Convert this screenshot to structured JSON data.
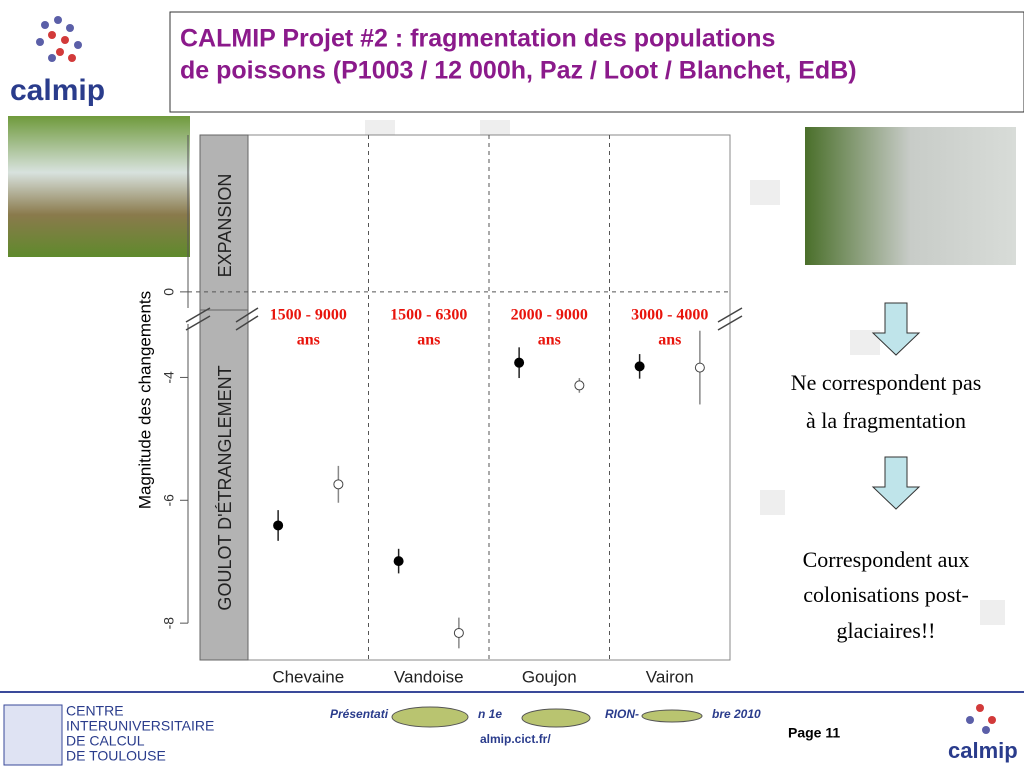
{
  "header": {
    "title_lines": [
      "CALMIP Projet #2 : fragmentation des populations",
      "de poissons (P1003 / 12 000h, Paz / Loot / Blanchet, EdB)"
    ],
    "logo": "calmip"
  },
  "chart_data": {
    "type": "scatter",
    "ylabel": "Magnitude des changements",
    "categories": [
      "Chevaine",
      "Vandoise",
      "Goujon",
      "Vairon"
    ],
    "panel_labels": [
      "EXPANSION",
      "GOULOT D'ÉTRANGLEMENT"
    ],
    "series": [
      {
        "color": "#000000",
        "filled": true,
        "values": [
          -6.41,
          -6.99,
          -3.76,
          -3.82
        ],
        "errors": [
          0.25,
          0.2,
          0.25,
          0.2
        ]
      },
      {
        "color": "#000000",
        "filled": false,
        "values": [
          -5.74,
          -8.16,
          -4.13,
          -3.84
        ],
        "errors": [
          0.3,
          0.25,
          0.12,
          0.6
        ]
      }
    ],
    "ylim": [
      -8.6,
      2.6
    ],
    "ybreak": [
      -3,
      -0.4
    ],
    "yticks": [
      -8,
      -6,
      -4,
      0
    ],
    "reference_line": 0,
    "annotations": [
      [
        "1500 - 9000",
        "ans"
      ],
      [
        "1500 - 6300",
        "ans"
      ],
      [
        "2000 - 9000",
        "ans"
      ],
      [
        "3000 - 4000",
        "ans"
      ]
    ],
    "annotation_color": "#e8140c"
  },
  "side_notes": [
    "Ne correspondent pas",
    "à la fragmentation",
    "Correspondent aux",
    "colonisations post-",
    "glaciaires!!"
  ],
  "footer": {
    "org_lines": [
      "CENTRE",
      "INTERUNIVERSITAIRE",
      "DE CALCUL",
      "DE TOULOUSE"
    ],
    "fragments": [
      "Présentati",
      "n 1e",
      "RION-",
      "bre 2010"
    ],
    "url_fragment": "almip.cict.fr/",
    "page": "Page 11",
    "logo": "calmip"
  }
}
